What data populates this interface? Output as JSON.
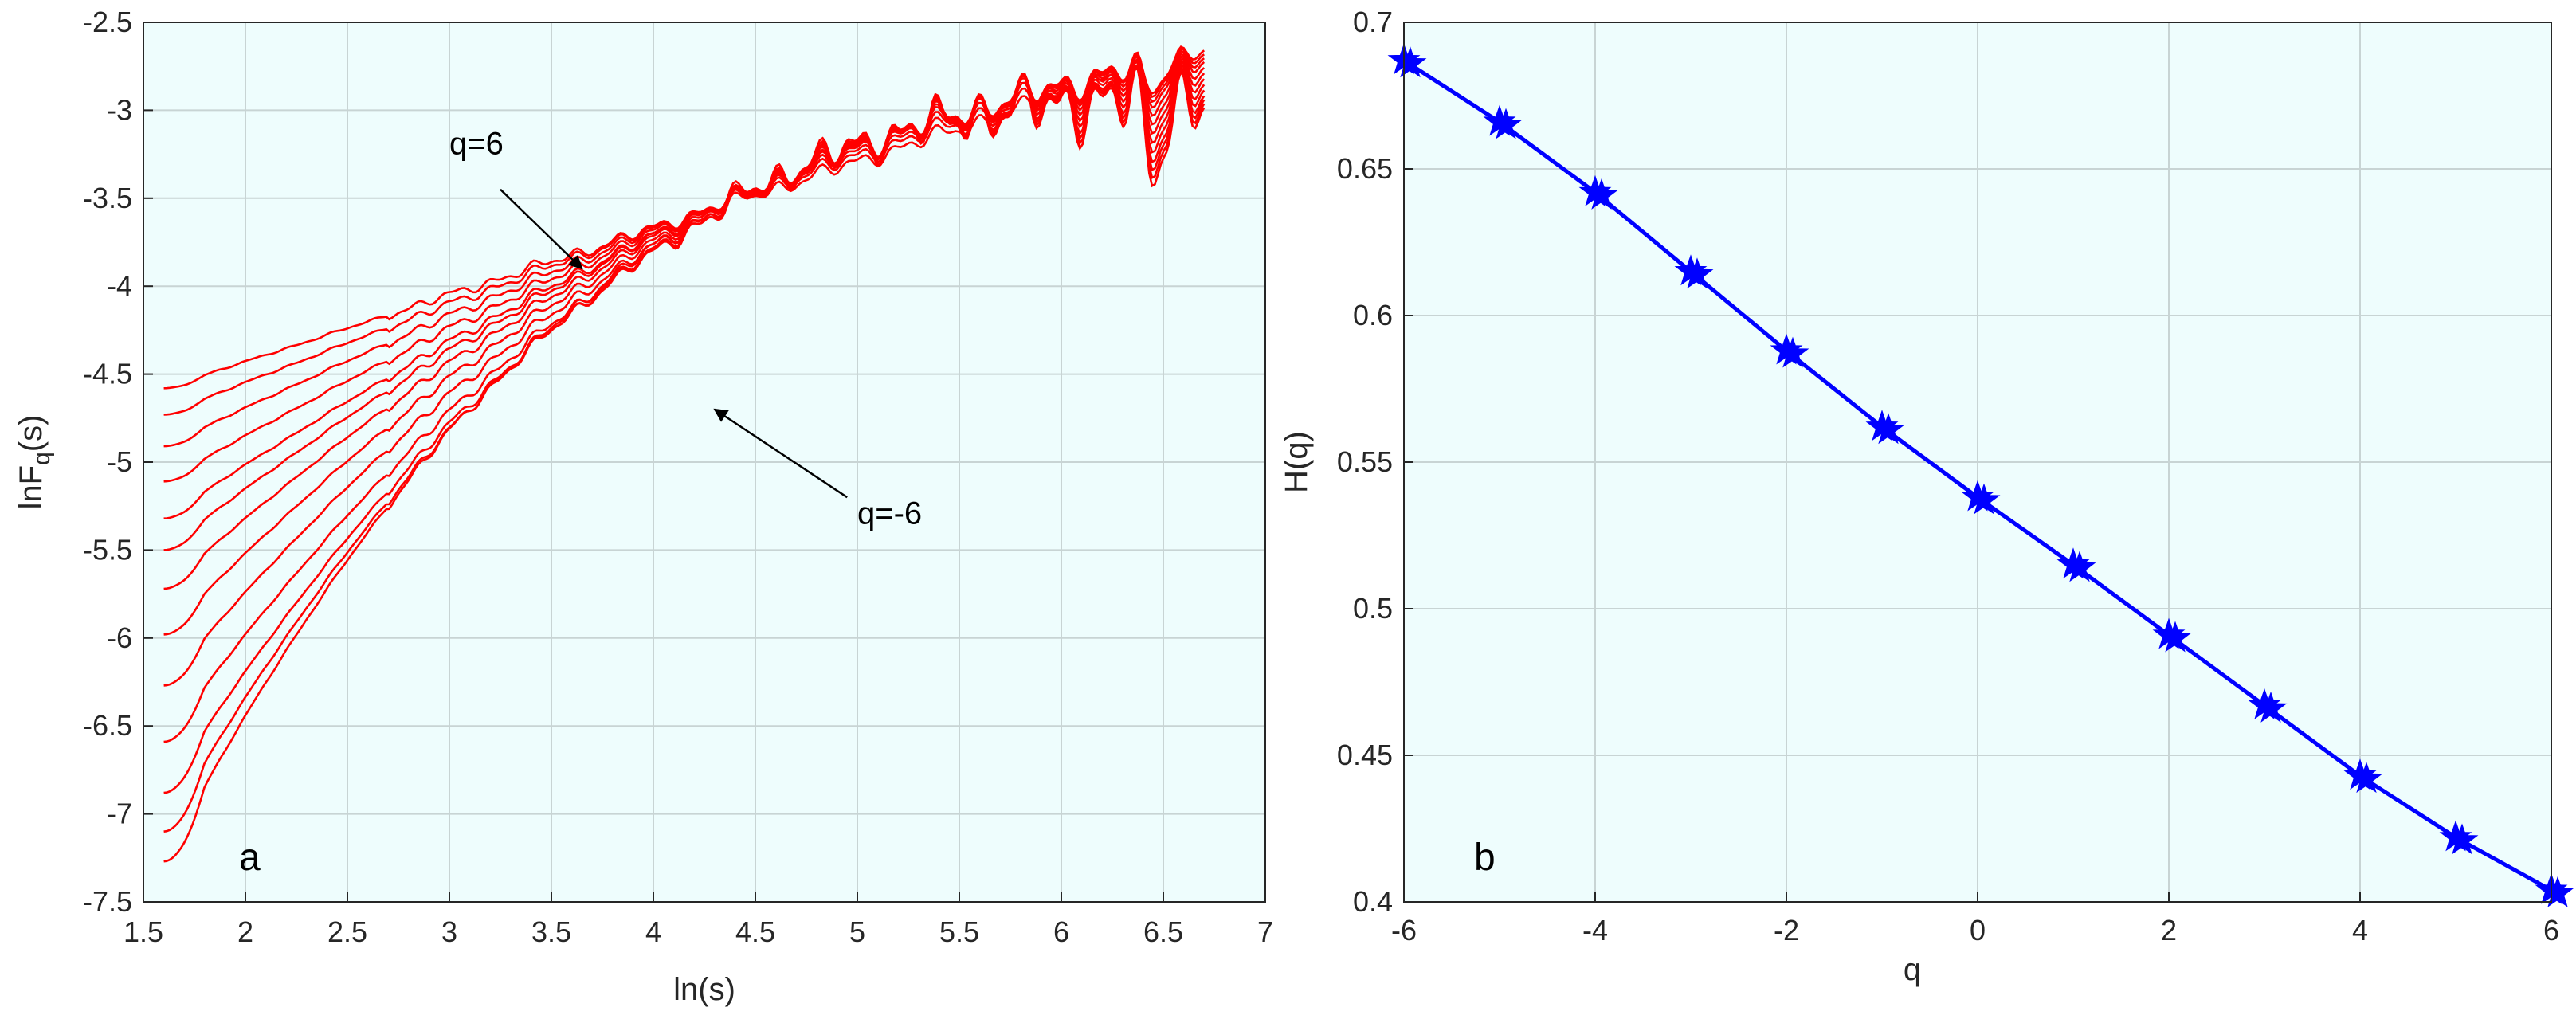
{
  "colors": {
    "plot_background": "#eefdfd",
    "lines_a": "#ff0000",
    "line_b": "#0000ff",
    "marker_b": "#0000ff"
  },
  "chart_data": [
    {
      "type": "line",
      "panel_label": "a",
      "xlabel": "ln(s)",
      "ylabel": "lnF",
      "ylabel_subscript": "q",
      "ylabel_suffix": "(s)",
      "xlim": [
        1.5,
        7
      ],
      "ylim": [
        -7.5,
        -2.5
      ],
      "xticks": [
        "1.5",
        "2",
        "2.5",
        "3",
        "3.5",
        "4",
        "4.5",
        "5",
        "5.5",
        "6",
        "6.5",
        "7"
      ],
      "yticks": [
        "-7.5",
        "-7",
        "-6.5",
        "-6",
        "-5.5",
        "-5",
        "-4.5",
        "-4",
        "-3.5",
        "-3",
        "-2.5"
      ],
      "grid": true,
      "annotations": [
        {
          "text": "q=6",
          "text_x": 3.0,
          "text_y": -3.25,
          "arrow_from": [
            3.25,
            -3.45
          ],
          "arrow_to": [
            3.65,
            -3.9
          ]
        },
        {
          "text": "q=-6",
          "text_x": 5.0,
          "text_y": -5.35,
          "arrow_from": [
            4.95,
            -5.2
          ],
          "arrow_to": [
            4.3,
            -4.7
          ]
        }
      ],
      "x_start": 1.6,
      "x_end": 6.7,
      "series_count": 13,
      "series": [
        {
          "name": "q=6",
          "y_start": -4.58,
          "y_end": -2.65
        },
        {
          "y_start": -4.73,
          "y_end": -2.67
        },
        {
          "y_start": -4.91,
          "y_end": -2.69
        },
        {
          "y_start": -5.11,
          "y_end": -2.71
        },
        {
          "y_start": -5.32,
          "y_end": -2.74
        },
        {
          "y_start": -5.5,
          "y_end": -2.77
        },
        {
          "y_start": -5.72,
          "y_end": -2.8
        },
        {
          "y_start": -5.98,
          "y_end": -2.83
        },
        {
          "y_start": -6.27,
          "y_end": -2.86
        },
        {
          "y_start": -6.59,
          "y_end": -2.89
        },
        {
          "y_start": -6.88,
          "y_end": -2.91
        },
        {
          "y_start": -7.1,
          "y_end": -2.93
        },
        {
          "name": "q=-6",
          "y_start": -7.27,
          "y_end": -2.95
        }
      ]
    },
    {
      "type": "line",
      "panel_label": "b",
      "xlabel": "q",
      "ylabel": "H(q)",
      "xlim": [
        -6,
        6
      ],
      "ylim": [
        0.4,
        0.7
      ],
      "xticks": [
        "-6",
        "-4",
        "-2",
        "0",
        "2",
        "4",
        "6"
      ],
      "yticks": [
        "0.4",
        "0.45",
        "0.5",
        "0.55",
        "0.6",
        "0.65",
        "0.7"
      ],
      "grid": true,
      "x": [
        -6,
        -5,
        -4,
        -3,
        -2,
        -1,
        0,
        1,
        2,
        3,
        4,
        5,
        6
      ],
      "values": [
        0.687,
        0.666,
        0.642,
        0.615,
        0.588,
        0.562,
        0.538,
        0.515,
        0.491,
        0.467,
        0.443,
        0.422,
        0.404
      ]
    }
  ]
}
